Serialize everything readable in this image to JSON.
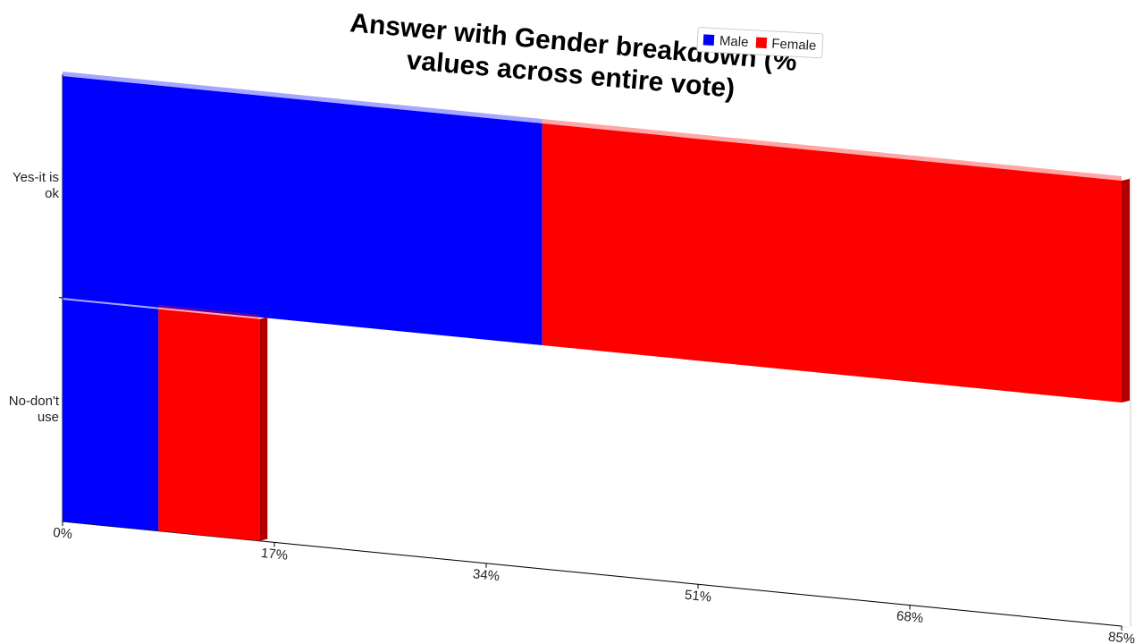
{
  "chart_data": {
    "type": "stacked-bar-horizontal",
    "title": "Answer with Gender breakdown (% values across entire vote)",
    "categories": [
      "Yes-it is ok",
      "No-don't use"
    ],
    "series": [
      {
        "name": "Male",
        "color": "#0000ff",
        "values": [
          38.5,
          7.7
        ]
      },
      {
        "name": "Female",
        "color": "#ff0000",
        "values": [
          46.5,
          8.1
        ]
      }
    ],
    "xlim": [
      0,
      85
    ],
    "xticks": [
      {
        "value": 0,
        "label": "0%"
      },
      {
        "value": 17,
        "label": "17%"
      },
      {
        "value": 34,
        "label": "34%"
      },
      {
        "value": 51,
        "label": "51%"
      },
      {
        "value": 68,
        "label": "68%"
      },
      {
        "value": 85,
        "label": "85%"
      }
    ]
  }
}
